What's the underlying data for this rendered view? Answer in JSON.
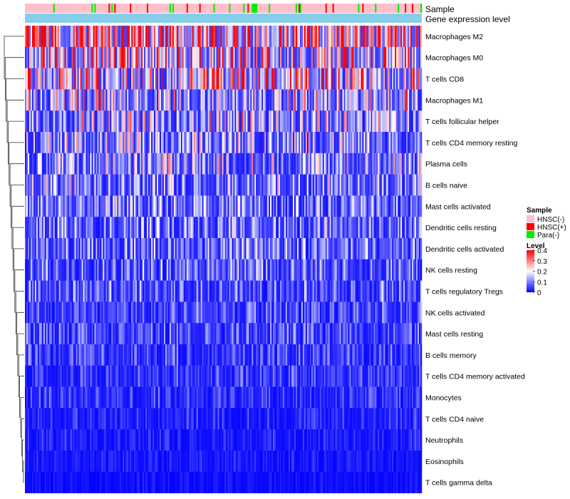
{
  "chart_data": {
    "type": "heatmap",
    "annotation_tracks": [
      "Sample",
      "Gene expression level"
    ],
    "rows": [
      "Macrophages M2",
      "Macrophages M0",
      "T cells CD8",
      "Macrophages M1",
      "T cells follicular helper",
      "T cells CD4 memory resting",
      "Plasma cells",
      "B cells naive",
      "Mast cells activated",
      "Dendritic cells resting",
      "Dendritic cells activated",
      "NK cells resting",
      "T cells regulatory  Tregs",
      "NK cells activated",
      "Mast cells resting",
      "B cells memory",
      "T cells CD4 memory activated",
      "Monocytes",
      "T cells CD4 naive",
      "Neutrophils",
      "Eosinophils",
      "T cells gamma delta"
    ],
    "row_mean_level": [
      0.22,
      0.16,
      0.14,
      0.11,
      0.1,
      0.09,
      0.09,
      0.08,
      0.07,
      0.07,
      0.065,
      0.06,
      0.055,
      0.045,
      0.045,
      0.04,
      0.035,
      0.03,
      0.025,
      0.02,
      0.015,
      0.01
    ],
    "sample_legend": {
      "title": "Sample",
      "items": [
        {
          "label": "HNSC(-)",
          "color": "#ffc0cb"
        },
        {
          "label": "HNSC(+)",
          "color": "#ff0000"
        },
        {
          "label": "Para(-)",
          "color": "#00ee00"
        }
      ]
    },
    "level_legend": {
      "title": "Level",
      "ticks": [
        "0.4",
        "0.3",
        "0.2",
        "0.1",
        "0"
      ],
      "range": [
        0,
        0.4
      ],
      "colors": [
        "#0000ff",
        "#ffffff",
        "#ff0000"
      ]
    },
    "expression_bar_color": "#87ceeb"
  }
}
